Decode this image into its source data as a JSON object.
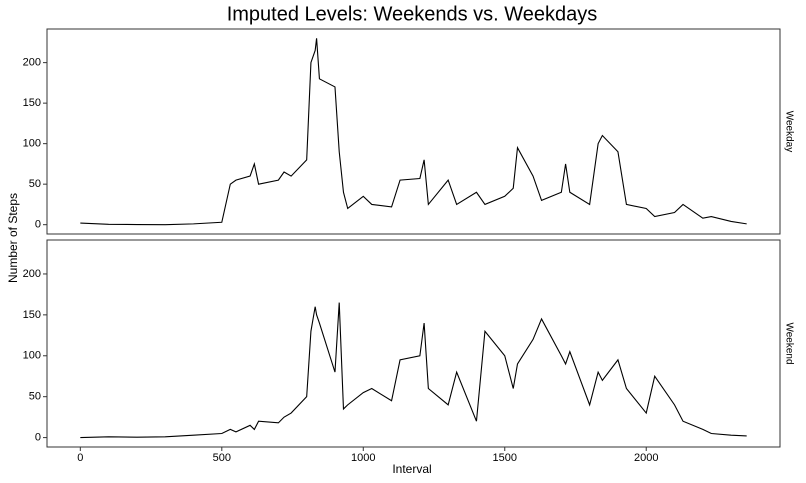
{
  "chart_data": {
    "type": "line",
    "title": "Imputed Levels: Weekends vs. Weekdays",
    "x_label": "Interval",
    "y_label": "Number of Steps",
    "x": [
      0,
      100,
      200,
      300,
      400,
      500,
      530,
      550,
      600,
      615,
      630,
      700,
      720,
      745,
      800,
      815,
      830,
      835,
      845,
      900,
      915,
      930,
      945,
      1000,
      1030,
      1100,
      1130,
      1200,
      1215,
      1230,
      1300,
      1330,
      1400,
      1430,
      1500,
      1530,
      1545,
      1600,
      1630,
      1700,
      1715,
      1730,
      1800,
      1830,
      1845,
      1900,
      1930,
      2000,
      2030,
      2100,
      2130,
      2200,
      2230,
      2300,
      2355
    ],
    "series": [
      {
        "name": "Weekday",
        "color": "#000000",
        "values": [
          2,
          0.5,
          0.2,
          0,
          1,
          3,
          50,
          55,
          60,
          75,
          50,
          55,
          65,
          60,
          80,
          200,
          215,
          230,
          180,
          170,
          90,
          40,
          20,
          35,
          25,
          22,
          55,
          57,
          80,
          25,
          55,
          25,
          40,
          25,
          35,
          45,
          95,
          60,
          30,
          40,
          75,
          40,
          25,
          100,
          110,
          90,
          25,
          20,
          10,
          15,
          25,
          8,
          10,
          4,
          1
        ]
      },
      {
        "name": "Weekend",
        "color": "#000000",
        "values": [
          0,
          1,
          0.5,
          1,
          3,
          5,
          10,
          7,
          15,
          10,
          20,
          18,
          25,
          30,
          50,
          130,
          160,
          150,
          140,
          80,
          165,
          35,
          40,
          55,
          60,
          45,
          95,
          100,
          140,
          60,
          40,
          80,
          20,
          130,
          100,
          60,
          90,
          120,
          145,
          100,
          90,
          105,
          40,
          80,
          70,
          95,
          60,
          30,
          75,
          40,
          20,
          10,
          5,
          3,
          2
        ]
      }
    ],
    "xlim": [
      -117.75,
      2472.75
    ],
    "xticks": [
      0,
      500,
      1000,
      1500,
      2000
    ],
    "ylim": [
      -11.5,
      241.5
    ],
    "yticks": [
      0,
      50,
      100,
      150,
      200
    ]
  }
}
